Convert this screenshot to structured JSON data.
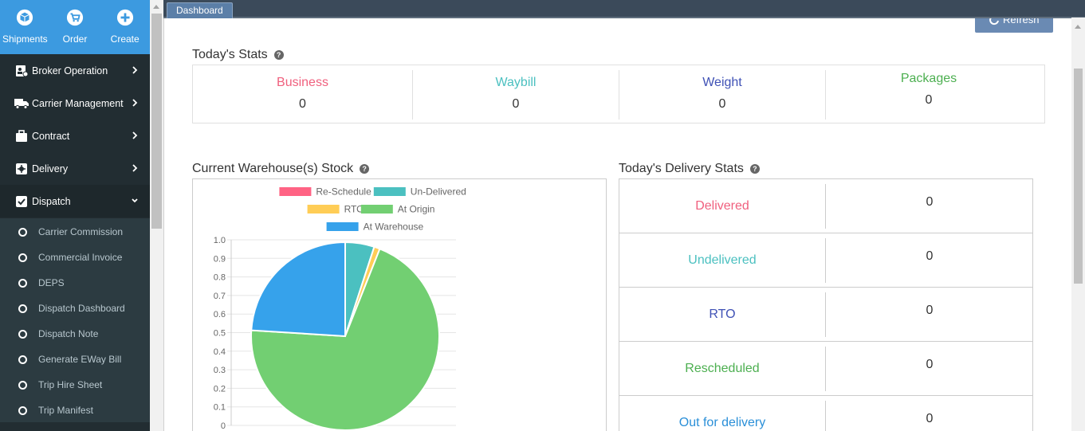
{
  "topnav": [
    {
      "label": "Shipments",
      "icon": "cube-icon"
    },
    {
      "label": "Order",
      "icon": "cart-icon"
    },
    {
      "label": "Create",
      "icon": "plus-circle-icon"
    }
  ],
  "menu": [
    {
      "label": "Broker Operation",
      "icon": "broker-icon"
    },
    {
      "label": "Carrier Management",
      "icon": "truck-icon"
    },
    {
      "label": "Contract",
      "icon": "briefcase-icon"
    },
    {
      "label": "Delivery",
      "icon": "delivery-icon"
    },
    {
      "label": "Dispatch",
      "icon": "check-square-icon",
      "expanded": true
    }
  ],
  "submenu": [
    "Carrier Commission",
    "Commercial Invoice",
    "DEPS",
    "Dispatch Dashboard",
    "Dispatch Note",
    "Generate EWay Bill",
    "Trip Hire Sheet",
    "Trip Manifest"
  ],
  "tab": {
    "label": "Dashboard"
  },
  "refresh": {
    "label": "Refresh"
  },
  "todays_stats": {
    "title": "Today's Stats",
    "items": [
      {
        "name": "Business",
        "value": "0",
        "color": "#f0607e"
      },
      {
        "name": "Waybill",
        "value": "0",
        "color": "#4bc0c0"
      },
      {
        "name": "Weight",
        "value": "0",
        "color": "#3f51b5"
      },
      {
        "name": "Packages",
        "value": "0",
        "color": "#4caf50"
      }
    ]
  },
  "warehouse": {
    "title": "Current Warehouse(s) Stock"
  },
  "chart_data": {
    "type": "pie",
    "legend": [
      {
        "label": "Re-Schedule",
        "color": "#ff6384"
      },
      {
        "label": "Un-Delivered",
        "color": "#4bc0c0"
      },
      {
        "label": "RTO",
        "color": "#ffcd56"
      },
      {
        "label": "At Origin",
        "color": "#72cf72"
      },
      {
        "label": "At Warehouse",
        "color": "#36a2eb"
      }
    ],
    "legend_position": "top",
    "slices": [
      {
        "label": "Re-Schedule",
        "fraction": 0.0
      },
      {
        "label": "Un-Delivered",
        "fraction": 0.05
      },
      {
        "label": "RTO",
        "fraction": 0.01
      },
      {
        "label": "At Origin",
        "fraction": 0.7
      },
      {
        "label": "At Warehouse",
        "fraction": 0.24
      }
    ],
    "y_ticks": [
      "1.0",
      "0.9",
      "0.8",
      "0.7",
      "0.6",
      "0.5",
      "0.4",
      "0.3",
      "0.2",
      "0.1",
      "0"
    ],
    "ylim": [
      0,
      1
    ],
    "grid": true
  },
  "delivery": {
    "title": "Today's Delivery Stats",
    "rows": [
      {
        "name": "Delivered",
        "value": "0",
        "color": "#f0607e"
      },
      {
        "name": "Undelivered",
        "value": "0",
        "color": "#4bc0c0"
      },
      {
        "name": "RTO",
        "value": "0",
        "color": "#3f51b5"
      },
      {
        "name": "Rescheduled",
        "value": "0",
        "color": "#4caf50"
      },
      {
        "name": "Out for delivery",
        "value": "0",
        "color": "#2a8fd8"
      }
    ]
  }
}
